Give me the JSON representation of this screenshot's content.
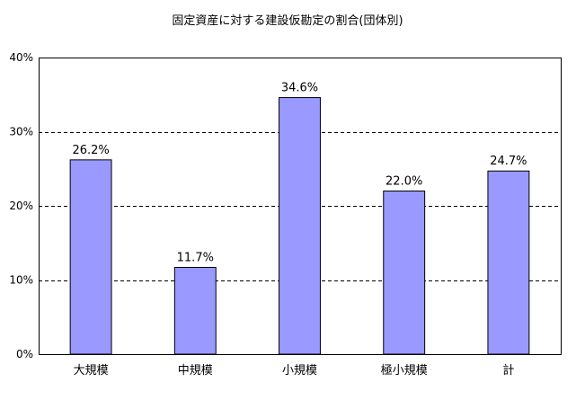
{
  "chart_data": {
    "type": "bar",
    "title": "固定資産に対する建設仮勘定の割合(団体別)",
    "categories": [
      "大規模",
      "中規模",
      "小規模",
      "極小規模",
      "計"
    ],
    "values": [
      26.2,
      11.7,
      34.6,
      22.0,
      24.7
    ],
    "value_labels": [
      "26.2%",
      "11.7%",
      "34.6%",
      "22.0%",
      "24.7%"
    ],
    "xlabel": "",
    "ylabel": "",
    "ylim": [
      0,
      40
    ],
    "yticks": [
      0,
      10,
      20,
      30,
      40
    ],
    "ytick_labels": [
      "0%",
      "10%",
      "20%",
      "30%",
      "40%"
    ],
    "grid": "dashed horizontal",
    "legend": "none",
    "bar_color": "#9999ff",
    "bar_edge_color": "#000000"
  }
}
